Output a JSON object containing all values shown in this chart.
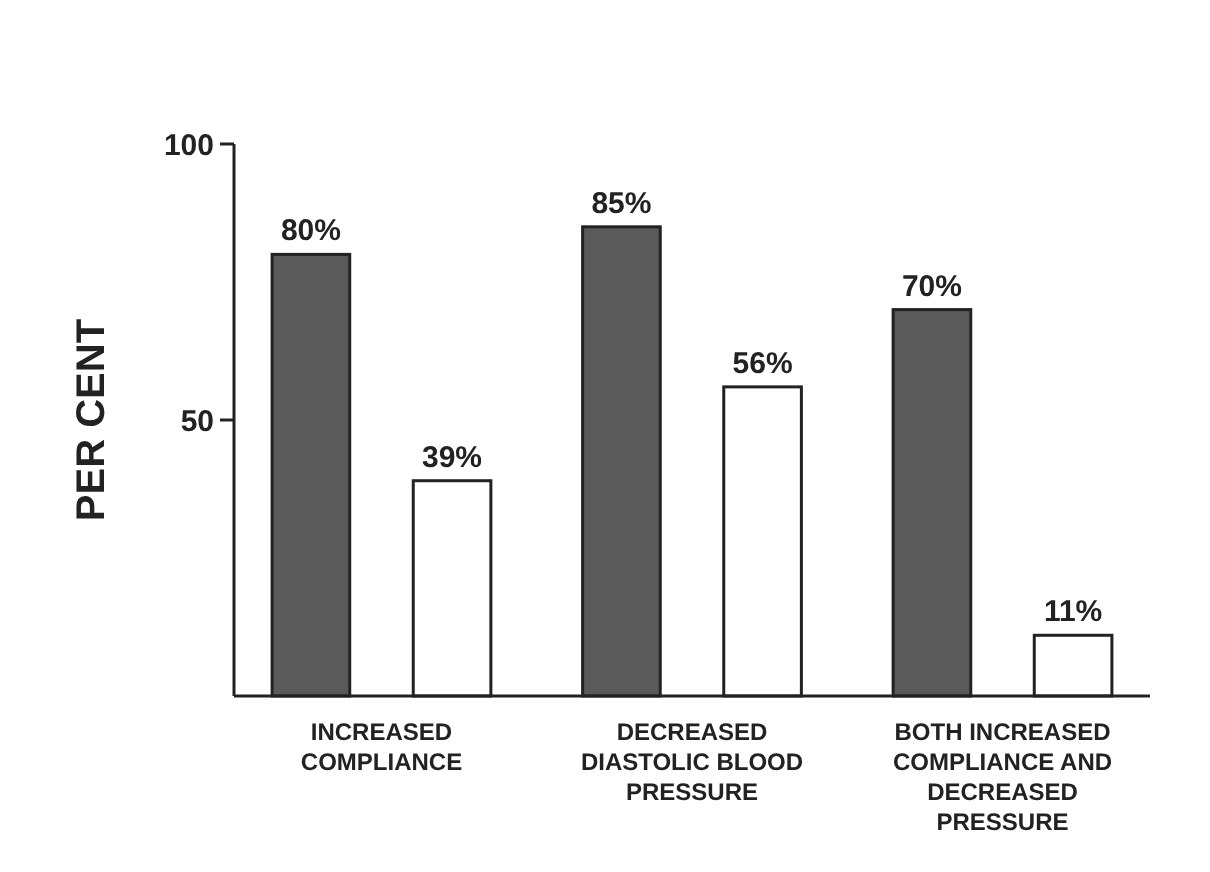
{
  "chart_data": {
    "type": "bar",
    "ylabel": "PER CENT",
    "categories": [
      "INCREASED COMPLIANCE",
      "DECREASED DIASTOLIC BLOOD PRESSURE",
      "BOTH INCREASED COMPLIANCE AND DECREASED PRESSURE"
    ],
    "series": [
      {
        "color": "#5a5a5a",
        "values": [
          80,
          85,
          70
        ],
        "value_labels": [
          "80%",
          "85%",
          "70%"
        ]
      },
      {
        "color": "#ffffff",
        "values": [
          39,
          56,
          11
        ],
        "value_labels": [
          "39%",
          "56%",
          "11%"
        ]
      }
    ],
    "ylim": [
      0,
      100
    ],
    "yticks": [
      50,
      100
    ],
    "grid": false
  }
}
